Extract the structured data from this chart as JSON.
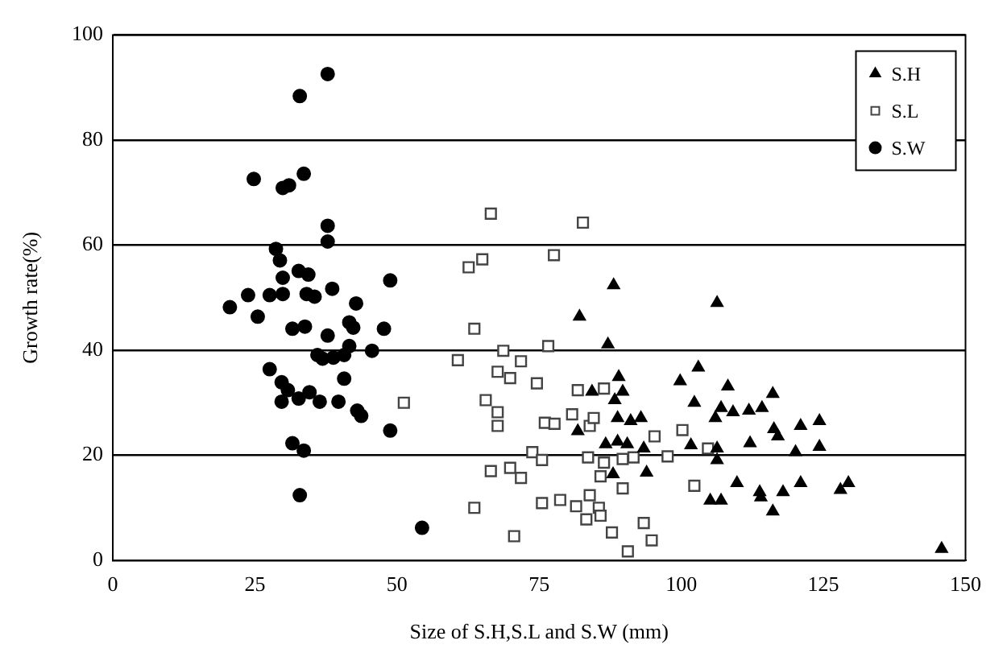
{
  "chart_data": {
    "type": "scatter",
    "xlabel": "Size of S.H,S.L and S.W (mm)",
    "ylabel": "Growth rate(%)",
    "xlim": [
      0,
      150
    ],
    "xticks": [
      0,
      25,
      50,
      75,
      100,
      125,
      150
    ],
    "ylim": [
      0,
      100
    ],
    "yticks": [
      0,
      20,
      40,
      60,
      80,
      100
    ],
    "grid": "y",
    "legend": "top right",
    "series": [
      {
        "name": "S.H",
        "color": "#000000",
        "marker": "triangle",
        "x": [
          88.1,
          82.1,
          87.1,
          89.0,
          84.3,
          89.7,
          88.3,
          88.8,
          91.1,
          92.9,
          81.8,
          86.7,
          88.8,
          90.5,
          93.4,
          88.0,
          93.9,
          99.8,
          106.3,
          103.0,
          108.2,
          116.1,
          102.3,
          107.0,
          109.1,
          111.9,
          114.2,
          106.0,
          116.3,
          117.0,
          121.0,
          124.3,
          112.1,
          120.1,
          124.3,
          106.3,
          106.3,
          101.7,
          109.8,
          105.1,
          107.0,
          113.8,
          114.0,
          117.9,
          116.1,
          121.0,
          128.0,
          129.4,
          145.8
        ],
        "values": [
          52.4,
          46.4,
          41.1,
          34.9,
          32.1,
          32.1,
          30.5,
          27.1,
          26.5,
          27.1,
          24.6,
          22.1,
          22.6,
          22.1,
          21.3,
          16.4,
          16.7,
          34.1,
          49.0,
          36.7,
          33.1,
          31.7,
          30.0,
          29.0,
          28.2,
          28.5,
          29.0,
          27.1,
          25.0,
          23.6,
          25.6,
          26.5,
          22.3,
          20.6,
          21.6,
          19.1,
          21.3,
          21.9,
          14.7,
          11.4,
          11.4,
          13.0,
          12.0,
          13.0,
          9.3,
          14.7,
          13.4,
          14.7,
          2.2
        ]
      },
      {
        "name": "S.L",
        "color": "#444444",
        "marker": "square",
        "x": [
          66.5,
          82.7,
          77.6,
          62.6,
          65.0,
          63.6,
          60.7,
          68.7,
          71.8,
          76.6,
          67.7,
          69.9,
          74.6,
          51.2,
          65.6,
          67.7,
          67.7,
          76.0,
          77.7,
          80.8,
          81.8,
          86.4,
          83.9,
          84.6,
          73.8,
          75.5,
          66.5,
          69.9,
          71.8,
          83.6,
          86.4,
          89.7,
          91.6,
          97.6,
          100.2,
          95.3,
          85.8,
          89.7,
          75.5,
          78.7,
          81.5,
          83.9,
          85.5,
          83.3,
          85.8,
          63.6,
          70.6,
          87.8,
          90.6,
          93.4,
          94.8,
          102.3,
          104.7
        ],
        "values": [
          66.0,
          64.3,
          58.1,
          55.8,
          57.3,
          44.1,
          38.1,
          39.9,
          37.9,
          40.8,
          35.9,
          34.7,
          33.7,
          30.0,
          30.5,
          28.2,
          25.6,
          26.2,
          26.0,
          27.8,
          32.4,
          32.7,
          25.6,
          27.1,
          20.6,
          19.1,
          17.0,
          17.6,
          15.7,
          19.6,
          18.6,
          19.3,
          19.6,
          19.8,
          24.8,
          23.6,
          16.0,
          13.7,
          10.9,
          11.5,
          10.3,
          12.4,
          10.0,
          7.8,
          8.5,
          10.0,
          4.6,
          5.3,
          1.7,
          7.1,
          3.8,
          14.2,
          21.3
        ]
      },
      {
        "name": "S.W",
        "color": "#000000",
        "marker": "circle",
        "x": [
          37.8,
          32.9,
          24.8,
          29.9,
          31.0,
          33.6,
          37.8,
          37.8,
          28.7,
          29.4,
          29.9,
          32.7,
          34.4,
          48.8,
          23.8,
          27.6,
          29.9,
          34.1,
          35.5,
          38.6,
          20.6,
          25.5,
          42.8,
          31.6,
          33.8,
          41.6,
          42.3,
          47.7,
          37.8,
          36.0,
          36.9,
          38.8,
          40.7,
          41.6,
          45.6,
          27.6,
          29.7,
          30.8,
          40.7,
          29.7,
          32.7,
          34.6,
          36.4,
          39.7,
          43.0,
          43.7,
          48.8,
          31.6,
          33.6,
          32.9,
          54.4
        ],
        "values": [
          92.6,
          88.4,
          72.6,
          70.9,
          71.4,
          73.6,
          63.7,
          60.7,
          59.3,
          57.1,
          53.8,
          55.1,
          54.4,
          53.3,
          50.5,
          50.5,
          50.7,
          50.7,
          50.2,
          51.7,
          48.2,
          46.4,
          48.9,
          44.1,
          44.5,
          45.3,
          44.3,
          44.1,
          42.8,
          39.1,
          38.4,
          38.6,
          39.1,
          40.8,
          39.9,
          36.4,
          33.9,
          32.4,
          34.6,
          30.2,
          30.8,
          32.0,
          30.2,
          30.2,
          28.5,
          27.5,
          24.7,
          22.3,
          20.9,
          12.4,
          6.2
        ]
      }
    ]
  }
}
